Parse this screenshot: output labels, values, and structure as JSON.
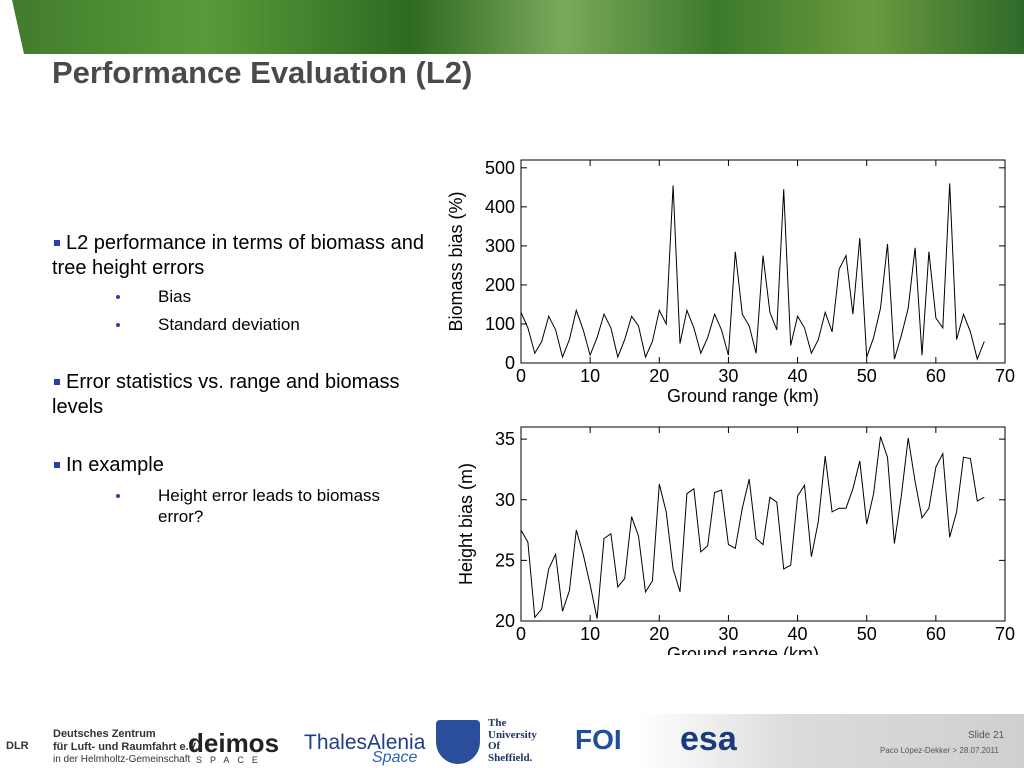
{
  "header": {
    "title": "Performance Evaluation (L2)"
  },
  "bullets": [
    {
      "text": "L2 performance in terms of biomass and tree height errors",
      "sub": [
        "Bias",
        "Standard deviation"
      ]
    },
    {
      "text": "Error statistics vs. range and biomass levels",
      "sub": []
    },
    {
      "text": "In example",
      "sub": [
        "Height error leads to biomass error?"
      ]
    }
  ],
  "chart_data": [
    {
      "type": "line",
      "xlabel": "Ground range (km)",
      "ylabel": "Biomass bias (%)",
      "color": "#000000",
      "x": [
        0,
        1,
        2,
        3,
        4,
        5,
        6,
        7,
        8,
        9,
        10,
        11,
        12,
        13,
        14,
        15,
        16,
        17,
        18,
        19,
        20,
        21,
        22,
        23,
        24,
        25,
        26,
        27,
        28,
        29,
        30,
        31,
        32,
        33,
        34,
        35,
        36,
        37,
        38,
        39,
        40,
        41,
        42,
        43,
        44,
        45,
        46,
        47,
        48,
        49,
        50,
        51,
        52,
        53,
        54,
        55,
        56,
        57,
        58,
        59,
        60,
        61,
        62,
        63,
        64,
        65,
        66,
        67
      ],
      "values": [
        130,
        90,
        25,
        55,
        120,
        85,
        15,
        60,
        135,
        85,
        20,
        65,
        125,
        90,
        15,
        60,
        120,
        95,
        15,
        55,
        135,
        100,
        455,
        50,
        135,
        90,
        25,
        65,
        125,
        85,
        20,
        285,
        125,
        95,
        25,
        275,
        130,
        85,
        445,
        45,
        120,
        90,
        25,
        60,
        130,
        80,
        240,
        275,
        125,
        320,
        15,
        65,
        140,
        305,
        10,
        70,
        140,
        295,
        20,
        285,
        115,
        90,
        460,
        60,
        125,
        80,
        10,
        55
      ],
      "xlim": [
        0,
        70
      ],
      "xticks": [
        0,
        10,
        20,
        30,
        40,
        50,
        60,
        70
      ],
      "ylim": [
        0,
        520
      ],
      "yticks": [
        0,
        100,
        200,
        300,
        400,
        500
      ]
    },
    {
      "type": "line",
      "xlabel": "Ground range (km)",
      "ylabel": "Height bias (m)",
      "color": "#000000",
      "x": [
        0,
        1,
        2,
        3,
        4,
        5,
        6,
        7,
        8,
        9,
        10,
        11,
        12,
        13,
        14,
        15,
        16,
        17,
        18,
        19,
        20,
        21,
        22,
        23,
        24,
        25,
        26,
        27,
        28,
        29,
        30,
        31,
        32,
        33,
        34,
        35,
        36,
        37,
        38,
        39,
        40,
        41,
        42,
        43,
        44,
        45,
        46,
        47,
        48,
        49,
        50,
        51,
        52,
        53,
        54,
        55,
        56,
        57,
        58,
        59,
        60,
        61,
        62,
        63,
        64,
        65,
        66,
        67
      ],
      "values": [
        27.5,
        26.5,
        20.3,
        21,
        24.3,
        25.5,
        20.8,
        22.5,
        27.5,
        25.5,
        23,
        20.2,
        26.8,
        27.2,
        22.8,
        23.5,
        28.6,
        27,
        22.4,
        23.3,
        31.3,
        29,
        24.3,
        22.4,
        30.5,
        30.9,
        25.7,
        26.2,
        30.6,
        30.8,
        26.3,
        26,
        29.3,
        31.7,
        26.8,
        26.3,
        30.2,
        29.8,
        24.3,
        24.6,
        30.3,
        31.2,
        25.3,
        28.2,
        33.6,
        29,
        29.3,
        29.3,
        30.9,
        33.2,
        28,
        30.5,
        35.2,
        33.5,
        26.4,
        30.3,
        35.1,
        31.5,
        28.5,
        29.3,
        32.7,
        33.8,
        26.9,
        29,
        33.5,
        33.4,
        29.9,
        30.2
      ],
      "xlim": [
        0,
        70
      ],
      "xticks": [
        0,
        10,
        20,
        30,
        40,
        50,
        60,
        70
      ],
      "ylim": [
        20,
        36
      ],
      "yticks": [
        20,
        25,
        30,
        35
      ]
    }
  ],
  "footer": {
    "dlr": {
      "abbr": "DLR",
      "line1": "Deutsches Zentrum",
      "line2": "für Luft- und Raumfahrt e.V.",
      "line3": "in der Helmholtz-Gemeinschaft"
    },
    "deimos": {
      "name": "deimos",
      "sub": "SPACE"
    },
    "thales": {
      "name": "ThalesAlenia",
      "sub": "Space"
    },
    "sheffield": [
      "The",
      "University",
      "Of",
      "Sheffield."
    ],
    "foi": "FOI",
    "esa": "esa",
    "slide": "Slide 21",
    "author": "Paco López-Dekker > 28.07.2011"
  }
}
